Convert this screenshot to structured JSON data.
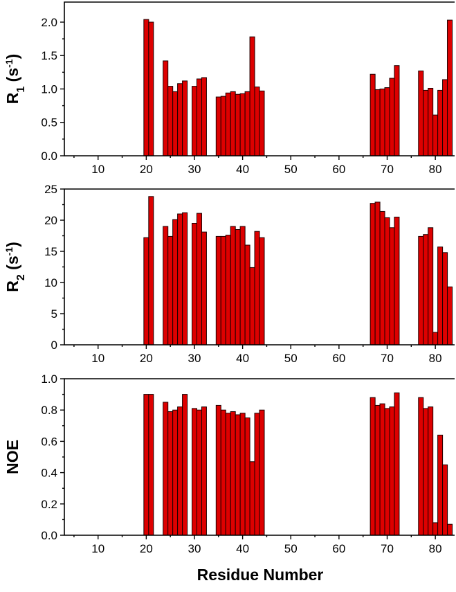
{
  "chart_data": [
    {
      "type": "bar",
      "ylabel": {
        "base": "R",
        "sub": "1",
        "unit_open": " (s",
        "sup": "-1",
        "unit_close": ")"
      },
      "ylim": [
        0,
        2.3
      ],
      "yticks": [
        "0.0",
        "0.5",
        "1.0",
        "1.5",
        "2.0"
      ],
      "xlim": [
        3,
        84
      ],
      "xticks": [
        "10",
        "20",
        "30",
        "40",
        "50",
        "60",
        "70",
        "80"
      ],
      "x": [
        20,
        21,
        24,
        25,
        26,
        27,
        28,
        30,
        31,
        32,
        35,
        36,
        37,
        38,
        39,
        40,
        41,
        42,
        43,
        44,
        67,
        68,
        69,
        70,
        71,
        72,
        77,
        78,
        79,
        80,
        81,
        82,
        83
      ],
      "values": [
        2.04,
        2.0,
        1.42,
        1.04,
        0.96,
        1.08,
        1.12,
        1.04,
        1.15,
        1.17,
        0.88,
        0.89,
        0.94,
        0.96,
        0.92,
        0.93,
        0.96,
        1.78,
        1.03,
        0.97,
        1.22,
        0.99,
        1.0,
        1.02,
        1.16,
        1.35,
        1.27,
        0.98,
        1.01,
        0.61,
        0.98,
        1.14,
        2.03
      ]
    },
    {
      "type": "bar",
      "ylabel": {
        "base": "R",
        "sub": "2",
        "unit_open": " (s",
        "sup": "-1",
        "unit_close": ")"
      },
      "ylim": [
        0,
        25
      ],
      "yticks": [
        "0",
        "5",
        "10",
        "15",
        "20",
        "25"
      ],
      "xlim": [
        3,
        84
      ],
      "xticks": [
        "10",
        "20",
        "30",
        "40",
        "50",
        "60",
        "70",
        "80"
      ],
      "x": [
        20,
        21,
        24,
        25,
        26,
        27,
        28,
        30,
        31,
        32,
        35,
        36,
        37,
        38,
        39,
        40,
        41,
        42,
        43,
        44,
        67,
        68,
        69,
        70,
        71,
        72,
        77,
        78,
        79,
        80,
        81,
        82,
        83
      ],
      "values": [
        17.2,
        23.8,
        19.0,
        17.4,
        20.1,
        21.0,
        21.2,
        19.5,
        21.1,
        18.1,
        17.4,
        17.4,
        17.6,
        19.0,
        18.5,
        19.0,
        16.0,
        12.4,
        18.2,
        17.2,
        22.7,
        22.9,
        21.4,
        20.4,
        18.8,
        20.5,
        17.4,
        17.7,
        18.8,
        2.0,
        15.7,
        14.8,
        9.3
      ]
    },
    {
      "type": "bar",
      "ylabel": {
        "base": "NOE",
        "sub": "",
        "unit_open": "",
        "sup": "",
        "unit_close": ""
      },
      "ylim": [
        0,
        1.0
      ],
      "yticks": [
        "0.0",
        "0.2",
        "0.4",
        "0.6",
        "0.8",
        "1.0"
      ],
      "xlim": [
        3,
        84
      ],
      "xticks": [
        "10",
        "20",
        "30",
        "40",
        "50",
        "60",
        "70",
        "80"
      ],
      "xlabel": "Residue Number",
      "x": [
        20,
        21,
        24,
        25,
        26,
        27,
        28,
        30,
        31,
        32,
        35,
        36,
        37,
        38,
        39,
        40,
        41,
        42,
        43,
        44,
        67,
        68,
        69,
        70,
        71,
        72,
        77,
        78,
        79,
        80,
        81,
        82,
        83
      ],
      "values": [
        0.9,
        0.9,
        0.85,
        0.79,
        0.8,
        0.82,
        0.9,
        0.81,
        0.8,
        0.82,
        0.83,
        0.8,
        0.78,
        0.79,
        0.77,
        0.78,
        0.75,
        0.47,
        0.78,
        0.8,
        0.88,
        0.83,
        0.84,
        0.81,
        0.82,
        0.91,
        0.88,
        0.81,
        0.82,
        0.08,
        0.64,
        0.45,
        0.07
      ]
    }
  ]
}
